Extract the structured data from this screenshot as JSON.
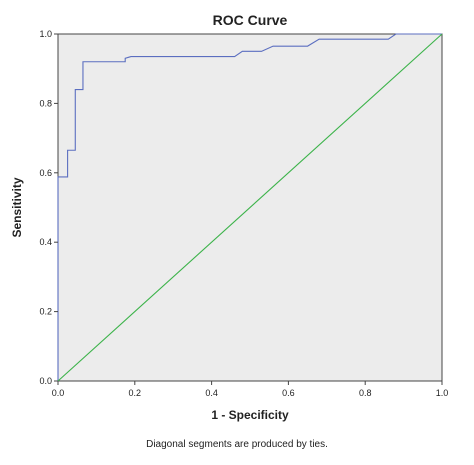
{
  "chart_data": {
    "type": "line",
    "title": "ROC Curve",
    "xlabel": "1 - Specificity",
    "ylabel": "Sensitivity",
    "xlim": [
      0.0,
      1.0
    ],
    "ylim": [
      0.0,
      1.0
    ],
    "x_ticks": [
      "0.0",
      "0.2",
      "0.4",
      "0.6",
      "0.8",
      "1.0"
    ],
    "y_ticks": [
      "0.0",
      "0.2",
      "0.4",
      "0.6",
      "0.8",
      "1.0"
    ],
    "grid": false,
    "background_color": "#ececec",
    "footnote": "Diagonal segments are produced by ties.",
    "series": [
      {
        "color": "#5b6ec0",
        "x": [
          0.0,
          0.0,
          0.025,
          0.025,
          0.045,
          0.045,
          0.065,
          0.065,
          0.175,
          0.175,
          0.19,
          0.46,
          0.48,
          0.53,
          0.56,
          0.65,
          0.68,
          0.86,
          0.88,
          1.0
        ],
        "y": [
          0.0,
          0.588,
          0.588,
          0.665,
          0.665,
          0.84,
          0.84,
          0.92,
          0.92,
          0.93,
          0.935,
          0.935,
          0.95,
          0.95,
          0.965,
          0.965,
          0.985,
          0.985,
          1.0,
          1.0
        ]
      },
      {
        "color": "#3cb34a",
        "x": [
          0.0,
          1.0
        ],
        "y": [
          0.0,
          1.0
        ]
      }
    ]
  }
}
